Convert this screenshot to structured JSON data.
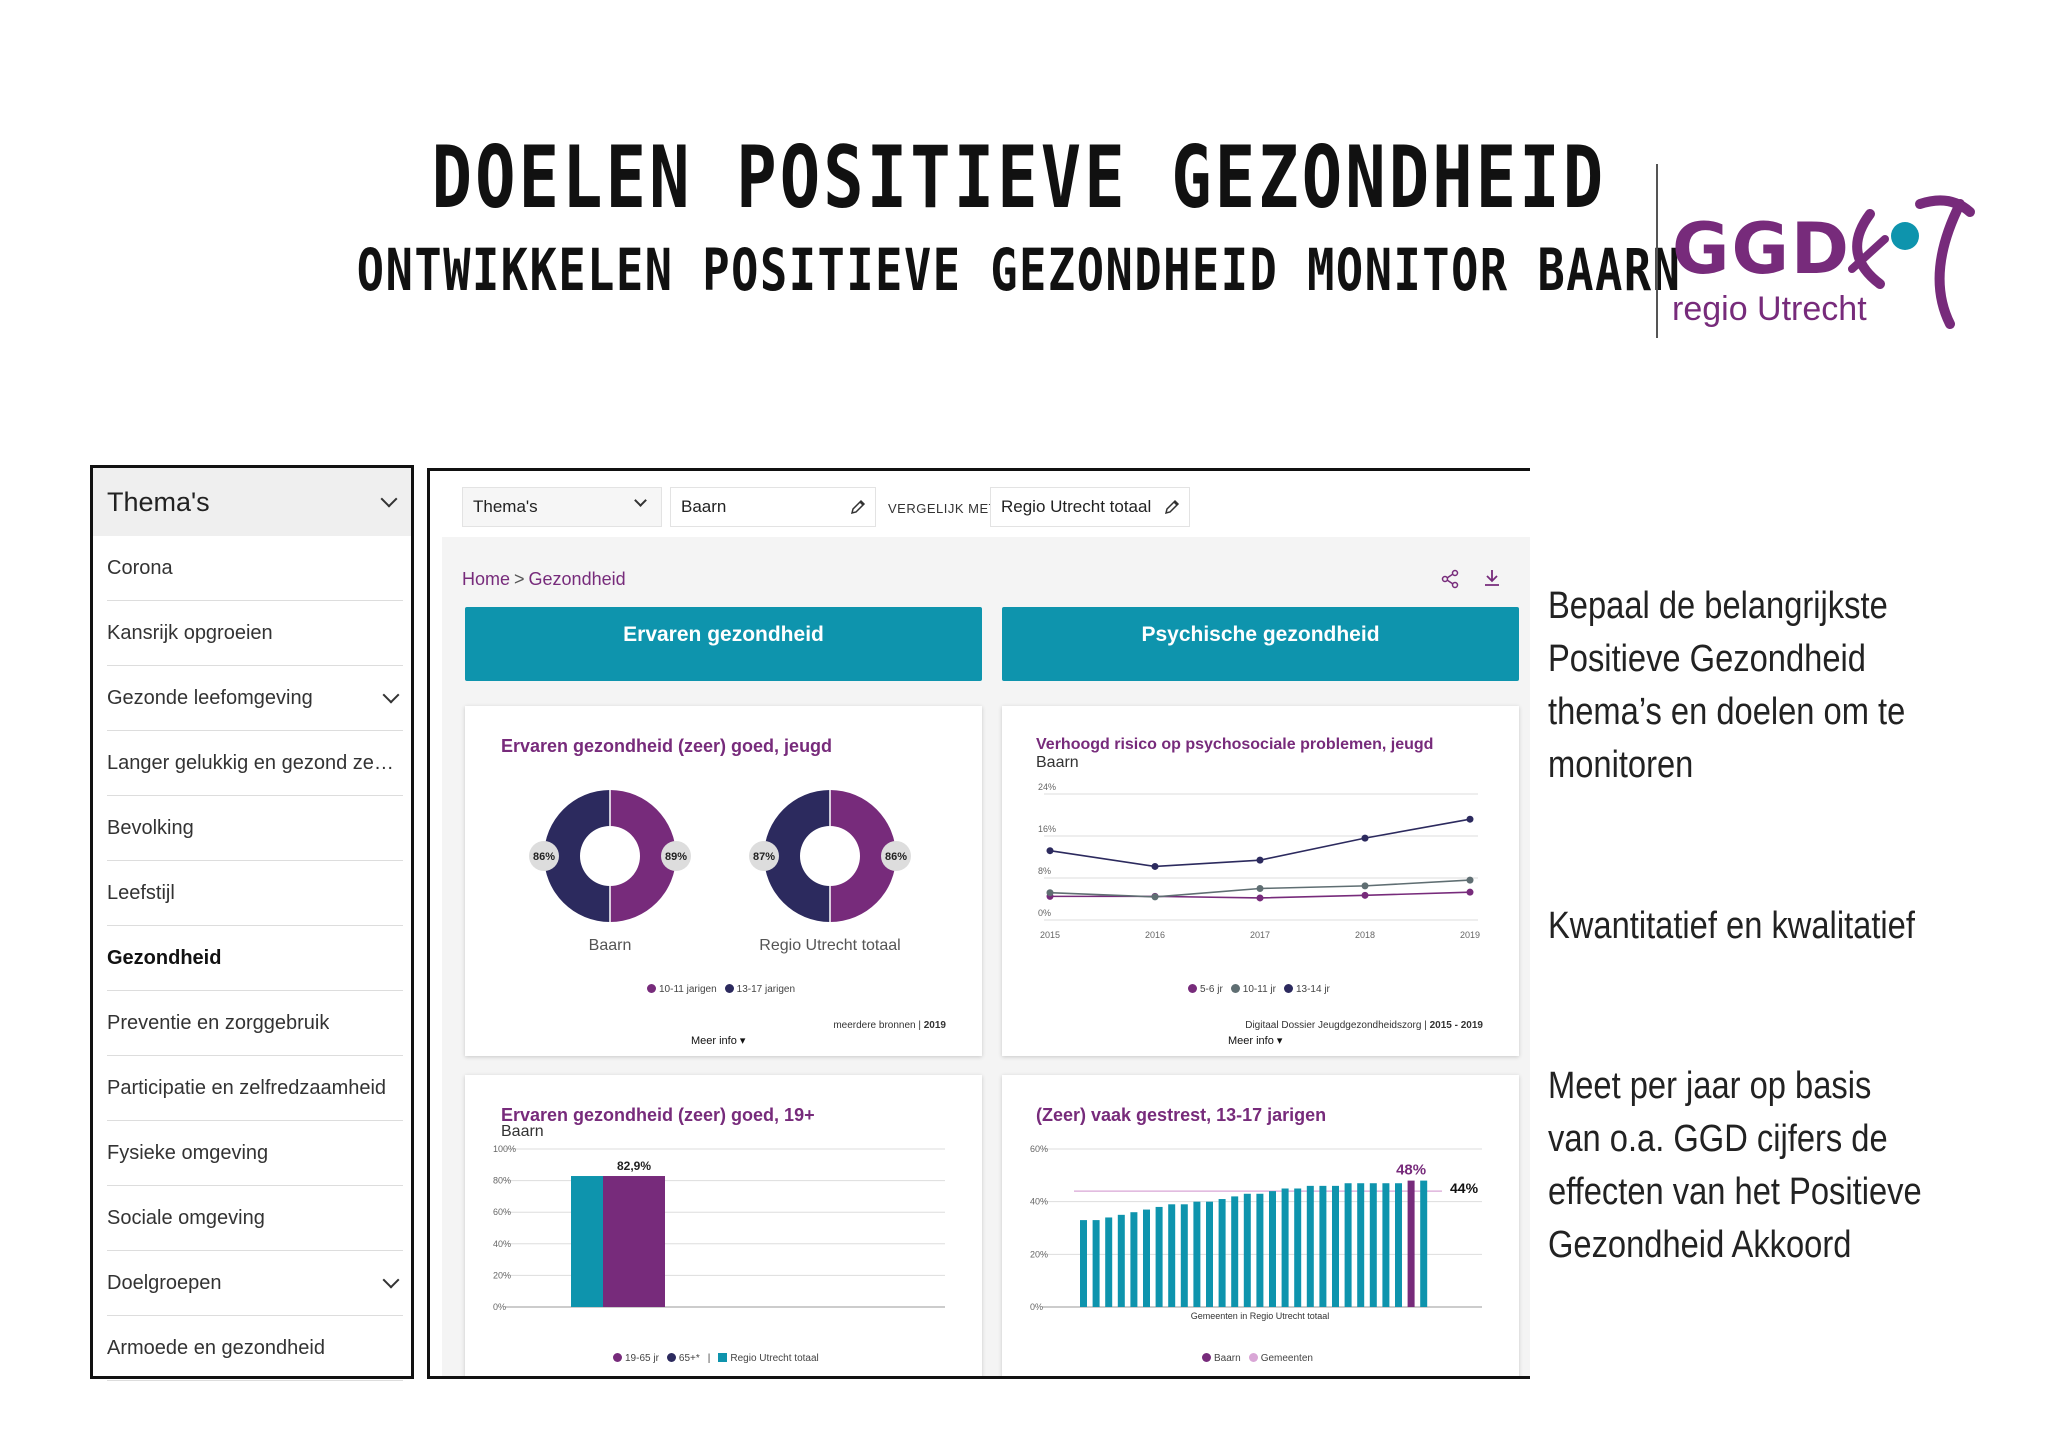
{
  "header": {
    "title": "DOELEN POSITIEVE GEZONDHEID",
    "subtitle": "ONTWIKKELEN POSITIEVE GEZONDHEID MONITOR BAARN"
  },
  "logo": {
    "name": "GGD",
    "sub": "regio Utrecht",
    "color": "#772b7b",
    "accent": "#0e94ad"
  },
  "sidebar": {
    "heading": "Thema's",
    "items": [
      {
        "label": "Corona",
        "expand": false,
        "active": false
      },
      {
        "label": "Kansrijk opgroeien",
        "expand": false,
        "active": false
      },
      {
        "label": "Gezonde leefomgeving",
        "expand": true,
        "active": false
      },
      {
        "label": "Langer gelukkig en gezond zel…",
        "expand": false,
        "active": false
      },
      {
        "label": "Bevolking",
        "expand": false,
        "active": false
      },
      {
        "label": "Leefstijl",
        "expand": false,
        "active": false
      },
      {
        "label": "Gezondheid",
        "expand": false,
        "active": true
      },
      {
        "label": "Preventie en zorggebruik",
        "expand": false,
        "active": false
      },
      {
        "label": "Participatie en zelfredzaamheid",
        "expand": false,
        "active": false
      },
      {
        "label": "Fysieke omgeving",
        "expand": false,
        "active": false
      },
      {
        "label": "Sociale omgeving",
        "expand": false,
        "active": false
      },
      {
        "label": "Doelgroepen",
        "expand": true,
        "active": false
      },
      {
        "label": "Armoede en gezondheid",
        "expand": false,
        "active": false
      }
    ]
  },
  "toolbar": {
    "theme_select": "Thema's",
    "region": "Baarn",
    "compare_label": "VERGELIJK MET",
    "compare_region": "Regio Utrecht totaal"
  },
  "breadcrumb": {
    "home": "Home",
    "sep": ">",
    "current": "Gezondheid"
  },
  "tabs": [
    {
      "label": "Ervaren gezondheid"
    },
    {
      "label": "Psychische gezondheid"
    }
  ],
  "colors": {
    "purple": "#772b7b",
    "navy": "#2c2a5e",
    "teal": "#0e94ad",
    "grey": "#5f6e72",
    "pink": "#d9a6d6"
  },
  "cards": {
    "donut": {
      "title": "Ervaren gezondheid (zeer) goed, jeugd",
      "legend": [
        "10-11 jarigen",
        "13-17 jarigen"
      ],
      "source": "meerdere bronnen",
      "source_year": "2019",
      "more": "Meer info"
    },
    "line": {
      "title": "Verhoogd risico op psychosociale problemen, jeugd",
      "subtitle": "Baarn",
      "legend": [
        "5-6 jr",
        "10-11 jr",
        "13-14 jr"
      ],
      "source": "Digitaal Dossier Jeugdgezondheidszorg",
      "source_year": "2015 - 2019",
      "more": "Meer info"
    },
    "bar": {
      "title": "Ervaren gezondheid (zeer) goed, 19+",
      "subtitle": "Baarn",
      "legend": [
        "19-65 jr",
        "65+*",
        "|",
        "Regio Utrecht totaal"
      ]
    },
    "comp": {
      "title": "(Zeer) vaak gestrest, 13-17 jarigen",
      "xlabel": "Gemeenten in Regio Utrecht totaal",
      "legend": [
        "Baarn",
        "Gemeenten"
      ]
    }
  },
  "chart_data": [
    {
      "type": "pie",
      "title": "Ervaren gezondheid (zeer) goed, jeugd",
      "charts": [
        {
          "name": "Baarn",
          "slices": [
            {
              "label": "10-11 jarigen",
              "value": 89,
              "display": "89%"
            },
            {
              "label": "13-17 jarigen",
              "value": 86,
              "display": "86%"
            }
          ]
        },
        {
          "name": "Regio Utrecht totaal",
          "slices": [
            {
              "label": "10-11 jarigen",
              "value": 86,
              "display": "86%"
            },
            {
              "label": "13-17 jarigen",
              "value": 87,
              "display": "87%"
            }
          ]
        }
      ]
    },
    {
      "type": "line",
      "title": "Verhoogd risico op psychosociale problemen, jeugd",
      "x": [
        "2015",
        "2016",
        "2017",
        "2018",
        "2019"
      ],
      "yticks": [
        "0%",
        "8%",
        "16%",
        "24%"
      ],
      "ylim": [
        0,
        24
      ],
      "series": [
        {
          "name": "5-6 jr",
          "color": "#772b7b",
          "values": [
            4.5,
            4.5,
            4.2,
            4.7,
            5.3
          ]
        },
        {
          "name": "10-11 jr",
          "color": "#5f6e72",
          "values": [
            5.2,
            4.4,
            6.0,
            6.5,
            7.6
          ]
        },
        {
          "name": "13-14 jr",
          "color": "#2c2a5e",
          "values": [
            13.2,
            10.2,
            11.4,
            15.6,
            19.2
          ]
        }
      ]
    },
    {
      "type": "bar",
      "title": "Ervaren gezondheid (zeer) goed, 19+",
      "yticks": [
        "0%",
        "20%",
        "40%",
        "60%",
        "80%",
        "100%"
      ],
      "ylim": [
        0,
        100
      ],
      "bars": [
        {
          "name": "Regio Utrecht totaal",
          "color": "#0e94ad",
          "value": 82.9
        },
        {
          "name": "19-65 jr",
          "color": "#772b7b",
          "value": 82.9,
          "label": "82,9%"
        }
      ]
    },
    {
      "type": "bar",
      "title": "(Zeer) vaak gestrest, 13-17 jarigen",
      "yticks": [
        "0%",
        "20%",
        "40%",
        "60%"
      ],
      "ylim": [
        0,
        60
      ],
      "reference": 44,
      "reference_label": "44%",
      "highlight_label": "48%",
      "values": [
        33,
        33,
        34,
        35,
        36,
        37,
        38,
        39,
        39,
        40,
        40,
        41,
        42,
        43,
        43,
        44,
        45,
        45,
        46,
        46,
        46,
        47,
        47,
        47,
        47,
        47,
        48,
        48
      ],
      "highlight_index": 26,
      "colors": {
        "bar": "#0e94ad",
        "highlight": "#772b7b"
      }
    }
  ],
  "notes": [
    "Bepaal de belangrijkste Positieve Gezondheid thema’s en doelen om te monitoren",
    "Kwantitatief en kwalitatief",
    "Meet per jaar op basis van o.a. GGD cijfers de effecten van het Positieve Gezondheid Akkoord"
  ]
}
